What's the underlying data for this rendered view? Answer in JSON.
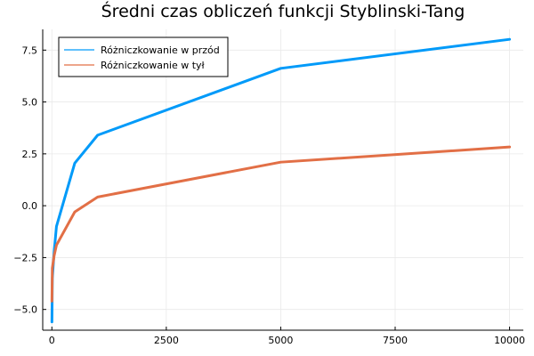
{
  "chart_data": {
    "type": "line",
    "title": "Średni czas obliczeń funkcji Styblinski-Tang",
    "xlabel": "",
    "ylabel": "",
    "xlim": [
      -200,
      10300
    ],
    "ylim": [
      -6.0,
      8.5
    ],
    "x_ticks": [
      0,
      2500,
      5000,
      7500,
      10000
    ],
    "x_tick_labels": [
      "0",
      "2500",
      "5000",
      "7500",
      "10000"
    ],
    "y_ticks": [
      -5.0,
      -2.5,
      0.0,
      2.5,
      5.0,
      7.5
    ],
    "y_tick_labels": [
      "−5.0",
      "−2.5",
      "0.0",
      "2.5",
      "5.0",
      "7.5"
    ],
    "grid": true,
    "legend_position": "top-left",
    "series": [
      {
        "name": "Różniczkowanie w przód",
        "color": "#009af9",
        "x": [
          1,
          10,
          50,
          100,
          500,
          1000,
          5000,
          10000
        ],
        "y": [
          -5.6,
          -3.5,
          -2.2,
          -1.0,
          2.05,
          3.4,
          6.62,
          8.02
        ]
      },
      {
        "name": "Różniczkowanie w tył",
        "color": "#e26f46",
        "x": [
          1,
          10,
          50,
          100,
          500,
          1000,
          5000,
          10000
        ],
        "y": [
          -4.6,
          -3.0,
          -2.4,
          -1.9,
          -0.3,
          0.42,
          2.1,
          2.83
        ]
      }
    ]
  }
}
